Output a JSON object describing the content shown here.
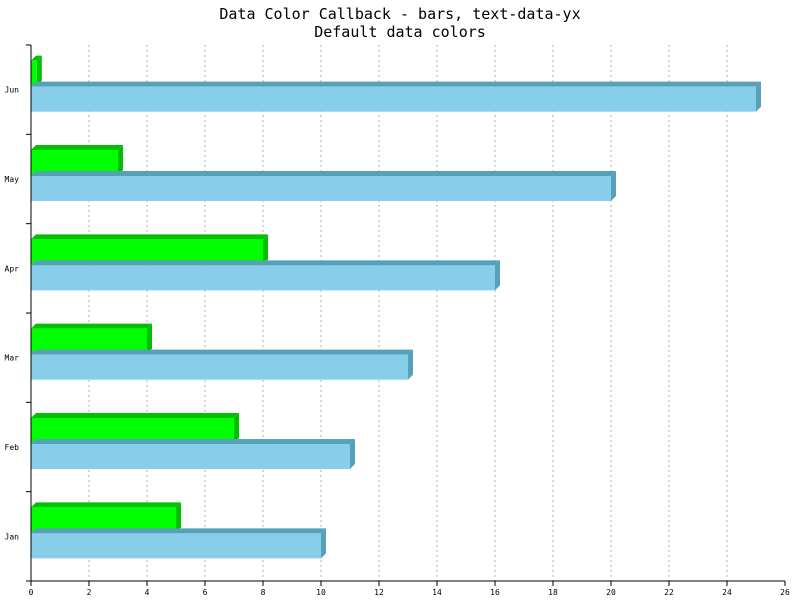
{
  "chart_data": {
    "type": "bar",
    "orientation": "horizontal",
    "title": "Data Color Callback - bars, text-data-yx",
    "subtitle": "Default data colors",
    "categories": [
      "Jan",
      "Feb",
      "Mar",
      "Apr",
      "May",
      "Jun"
    ],
    "series": [
      {
        "values": [
          5,
          7,
          4,
          8,
          3,
          0.2
        ],
        "color": "#00ff00",
        "shade": "#00c000"
      },
      {
        "values": [
          10,
          11,
          13,
          16,
          20,
          25
        ],
        "color": "#87ceeb",
        "shade": "#56a0b8"
      }
    ],
    "xlim": [
      0,
      26
    ],
    "x_ticks": [
      0,
      2,
      4,
      6,
      8,
      10,
      12,
      14,
      16,
      18,
      20,
      22,
      24,
      26
    ],
    "grid": "vertical dashed",
    "legend": "none"
  }
}
